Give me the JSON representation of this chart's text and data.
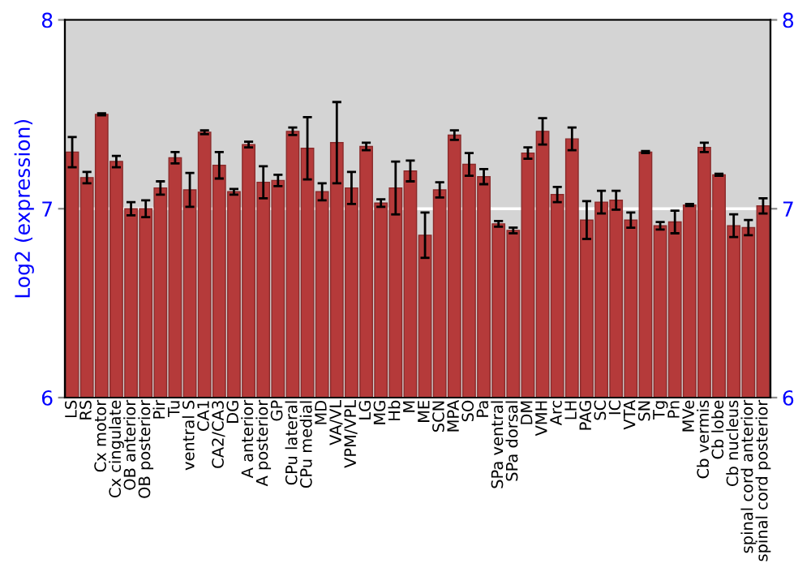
{
  "chart_data": {
    "type": "bar",
    "ylabel": "Log2 (expression)",
    "categories": [
      "LS",
      "RS",
      "Cx motor",
      "Cx cingulate",
      "OB anterior",
      "OB posterior",
      "Pir",
      "Tu",
      "ventral S",
      "CA1",
      "CA2/CA3",
      "DG",
      "A anterior",
      "A posterior",
      "GP",
      "CPu lateral",
      "CPu medial",
      "MD",
      "VA/VL",
      "VPM/VPL",
      "LG",
      "MG",
      "Hb",
      "M",
      "ME",
      "SCN",
      "MPA",
      "SO",
      "Pa",
      "SPa ventral",
      "SPa dorsal",
      "DM",
      "VMH",
      "Arc",
      "LH",
      "PAG",
      "SC",
      "IC",
      "VTA",
      "SN",
      "Tg",
      "Pn",
      "MVe",
      "Cb vermis",
      "Cb lobe",
      "Cb nucleus",
      "spinal cord anterior",
      "spinal cord posterior"
    ],
    "values": [
      7.3,
      7.165,
      7.5,
      7.25,
      7.0,
      7.0,
      7.11,
      7.27,
      7.1,
      7.405,
      7.23,
      7.09,
      7.34,
      7.14,
      7.15,
      7.41,
      7.32,
      7.09,
      7.35,
      7.11,
      7.33,
      7.03,
      7.11,
      7.2,
      6.86,
      7.1,
      7.39,
      7.235,
      7.17,
      6.92,
      6.885,
      7.295,
      7.41,
      7.075,
      7.37,
      6.94,
      7.035,
      7.045,
      6.94,
      7.3,
      6.91,
      6.93,
      7.02,
      7.325,
      7.18,
      6.91,
      6.9,
      7.015
    ],
    "errors": [
      0.08,
      0.03,
      0.005,
      0.03,
      0.035,
      0.045,
      0.035,
      0.03,
      0.09,
      0.01,
      0.07,
      0.015,
      0.015,
      0.085,
      0.03,
      0.02,
      0.165,
      0.045,
      0.215,
      0.085,
      0.02,
      0.02,
      0.14,
      0.055,
      0.12,
      0.04,
      0.025,
      0.06,
      0.04,
      0.015,
      0.015,
      0.03,
      0.07,
      0.04,
      0.06,
      0.1,
      0.06,
      0.05,
      0.04,
      0.005,
      0.02,
      0.06,
      0.005,
      0.025,
      0.005,
      0.06,
      0.04,
      0.04
    ],
    "color": "#b53a3a",
    "ylim": [
      6,
      8
    ],
    "yticks": [
      6,
      7,
      8
    ],
    "y2lim": [
      6,
      8
    ],
    "y2ticks": [
      6,
      7,
      8
    ],
    "grid": "y",
    "legend": false
  }
}
